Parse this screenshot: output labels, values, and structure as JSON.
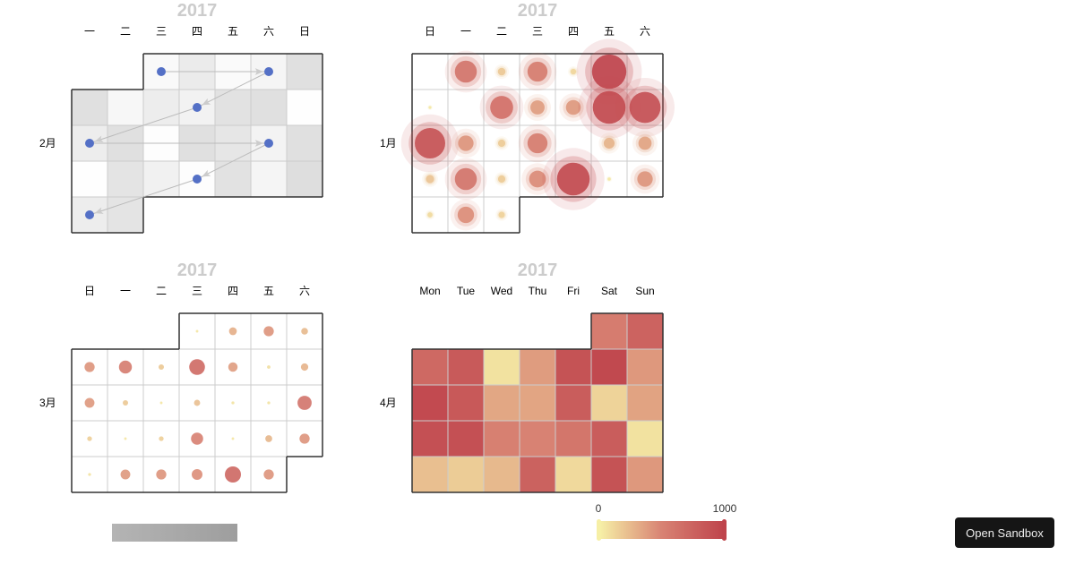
{
  "button": {
    "open_sandbox": "Open Sandbox"
  },
  "colors": {
    "scale": [
      "#f6efa6",
      "#d88273",
      "#bf444c"
    ],
    "gray_scale": [
      "#ffffff",
      "#d6d6d6"
    ],
    "point": "#5470c6"
  },
  "chart_data": [
    {
      "type": "heatmap-calendar",
      "year_label": "2017",
      "month_label": "2月",
      "day_labels": [
        "一",
        "二",
        "三",
        "四",
        "五",
        "六",
        "日"
      ],
      "first_day": "Mon",
      "start_col": 2,
      "days": 28,
      "values": [
        150,
        500,
        120,
        250,
        750,
        750,
        200,
        450,
        320,
        700,
        750,
        20,
        450,
        750,
        50,
        750,
        600,
        300,
        750,
        20,
        650,
        350,
        50,
        700,
        250,
        800,
        450,
        650
      ],
      "points_days": [
        1,
        4,
        9,
        13,
        18,
        23,
        27
      ],
      "arrows": true
    },
    {
      "type": "effect-scatter-calendar",
      "year_label": "2017",
      "month_label": "1月",
      "day_labels": [
        "日",
        "一",
        "二",
        "三",
        "四",
        "五",
        "六"
      ],
      "first_day": "Sun",
      "start_col": 0,
      "days": 31,
      "values": [
        0,
        620,
        180,
        560,
        120,
        1000,
        0,
        30,
        0,
        650,
        380,
        400,
        950,
        900,
        880,
        420,
        170,
        560,
        0,
        280,
        350,
        200,
        620,
        170,
        460,
        950,
        40,
        420,
        100,
        450,
        140
      ]
    },
    {
      "type": "scatter-calendar",
      "year_label": "2017",
      "month_label": "3月",
      "day_labels": [
        "日",
        "一",
        "二",
        "三",
        "四",
        "五",
        "六"
      ],
      "first_day": "Sun",
      "start_col": 3,
      "days": 31,
      "values": [
        40,
        300,
        420,
        250,
        420,
        560,
        180,
        700,
        380,
        80,
        280,
        400,
        180,
        40,
        220,
        60,
        60,
        620,
        150,
        40,
        150,
        520,
        40,
        260,
        420,
        60,
        400,
        420,
        450,
        720,
        420
      ]
    },
    {
      "type": "heatmap-calendar",
      "year_label": "2017",
      "month_label": "4月",
      "day_labels": [
        "Mon",
        "Tue",
        "Wed",
        "Thu",
        "Fri",
        "Sat",
        "Sun"
      ],
      "first_day": "Mon",
      "start_col": 5,
      "days": 30,
      "values": [
        550,
        750,
        700,
        820,
        60,
        380,
        880,
        960,
        400,
        950,
        830,
        330,
        340,
        800,
        130,
        350,
        900,
        900,
        520,
        500,
        600,
        800,
        60,
        220,
        160,
        250,
        760,
        100,
        880,
        400
      ],
      "visual_map": {
        "min": "0",
        "max": "1000"
      }
    }
  ]
}
